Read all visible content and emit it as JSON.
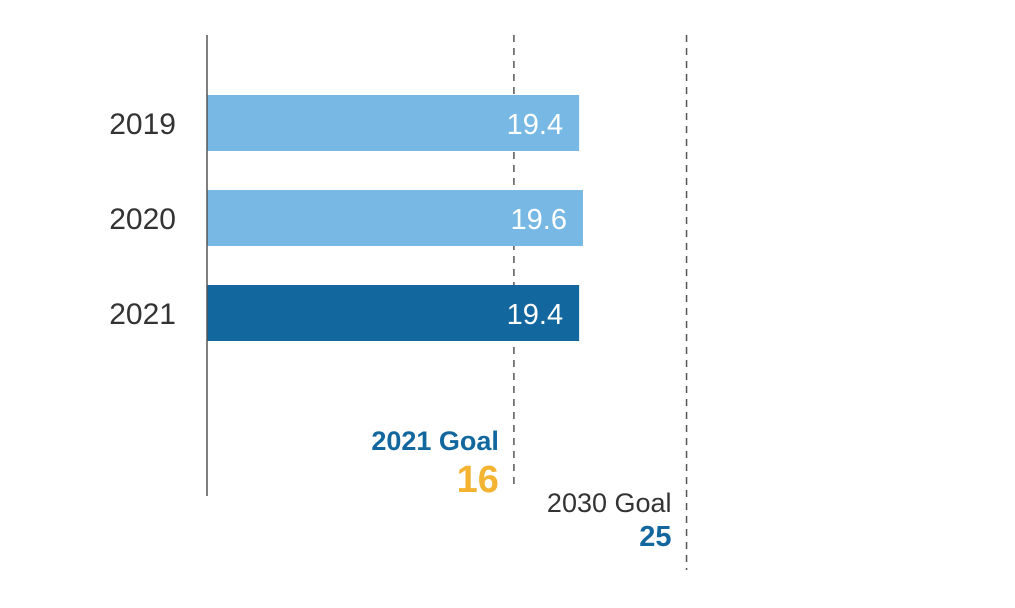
{
  "chart_data": {
    "type": "bar",
    "orientation": "horizontal",
    "categories": [
      "2019",
      "2020",
      "2021"
    ],
    "values": [
      19.4,
      19.6,
      19.4
    ],
    "data_labels": [
      "19.4",
      "19.6",
      "19.4"
    ],
    "bar_colors": [
      "#77b8e4",
      "#77b8e4",
      "#12679f"
    ],
    "xlim": [
      0,
      33
    ],
    "grid": false,
    "reference_lines": [
      {
        "label": "2021 Goal",
        "value_label": "16",
        "value": 16,
        "label_color": "#12679f",
        "value_color": "#f4b331",
        "bold": true
      },
      {
        "label": "2030 Goal",
        "value_label": "25",
        "value": 25,
        "label_color": "#333333",
        "value_color": "#12679f",
        "bold": false
      }
    ]
  }
}
